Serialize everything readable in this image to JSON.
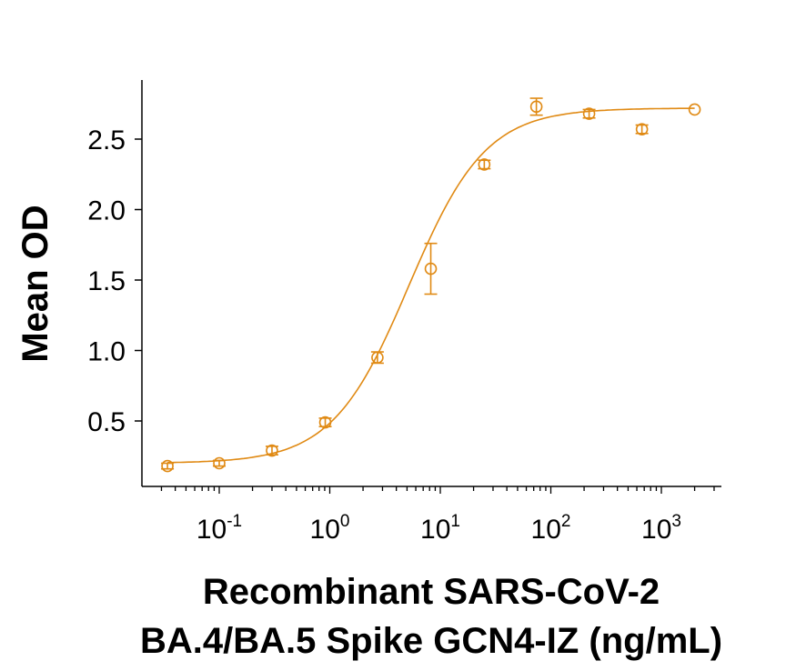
{
  "chart_data": {
    "type": "scatter",
    "subtype": "dose-response with 4PL fit curve and error bars",
    "title": "",
    "xlabel_lines": [
      "Recombinant SARS-CoV-2",
      "BA.4/BA.5 Spike GCN4-IZ (ng/mL)"
    ],
    "xlabel": "Recombinant SARS-CoV-2 BA.4/BA.5 Spike GCN4-IZ (ng/mL)",
    "ylabel": "Mean OD",
    "xscale": "log",
    "xlim": [
      0.025,
      3000
    ],
    "ylim": [
      0.11,
      2.95
    ],
    "grid": false,
    "legend": null,
    "color": "#E08A14",
    "yticks": [
      0.5,
      1.0,
      1.5,
      2.0,
      2.5
    ],
    "ytick_labels": [
      "0.5",
      "1.0",
      "1.5",
      "2.0",
      "2.5"
    ],
    "xticks": [
      0.1,
      1,
      10,
      100,
      1000
    ],
    "xtick_labels": [
      {
        "base": "10",
        "exp": "-1"
      },
      {
        "base": "10",
        "exp": "0"
      },
      {
        "base": "10",
        "exp": "1"
      },
      {
        "base": "10",
        "exp": "2"
      },
      {
        "base": "10",
        "exp": "3"
      }
    ],
    "series": [
      {
        "name": "Mean OD",
        "x": [
          0.034,
          0.1,
          0.3,
          0.91,
          2.7,
          8.2,
          25,
          74,
          222,
          667,
          2000
        ],
        "y": [
          0.18,
          0.2,
          0.29,
          0.49,
          0.95,
          1.58,
          2.32,
          2.73,
          2.68,
          2.57,
          2.71
        ],
        "error": [
          0.02,
          0.02,
          0.03,
          0.03,
          0.04,
          0.18,
          0.03,
          0.06,
          0.03,
          0.03,
          0.0
        ]
      }
    ],
    "fit_curve": {
      "model": "4PL",
      "bottom": 0.2,
      "top": 2.72,
      "ec50": 5.2,
      "hill": 1.25
    }
  }
}
